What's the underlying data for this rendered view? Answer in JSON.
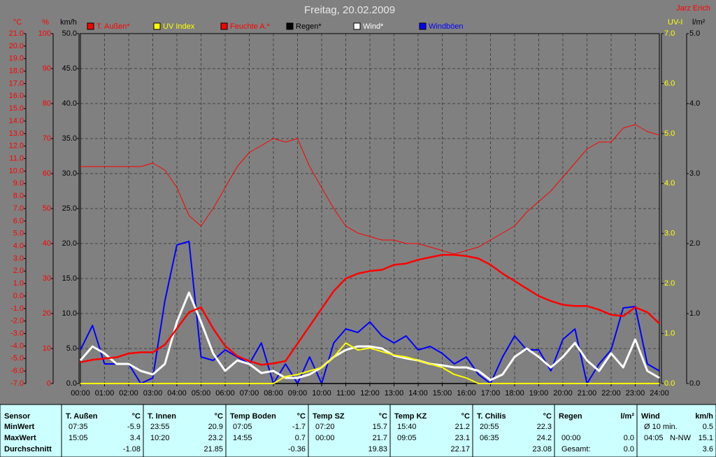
{
  "chart_data": {
    "type": "line",
    "title": "Freitag, 20.02.2009",
    "author": "Jarz Erich",
    "grid": true,
    "x": [
      0,
      0.5,
      1,
      1.5,
      2,
      2.5,
      3,
      3.5,
      4,
      4.5,
      5,
      5.5,
      6,
      6.5,
      7,
      7.5,
      8,
      8.5,
      9,
      9.5,
      10,
      10.5,
      11,
      11.5,
      12,
      12.5,
      13,
      13.5,
      14,
      14.5,
      15,
      15.5,
      16,
      16.5,
      17,
      17.5,
      18,
      18.5,
      19,
      19.5,
      20,
      20.5,
      21,
      21.5,
      22,
      22.5,
      23,
      23.5,
      24
    ],
    "xlim": [
      0,
      24
    ],
    "xticks": [
      {
        "value": 0,
        "label": "00:00"
      },
      {
        "value": 1,
        "label": "01:00"
      },
      {
        "value": 2,
        "label": "02:00"
      },
      {
        "value": 3,
        "label": "03:00"
      },
      {
        "value": 4,
        "label": "04:00"
      },
      {
        "value": 5,
        "label": "05:00"
      },
      {
        "value": 6,
        "label": "06:00"
      },
      {
        "value": 7,
        "label": "07:00"
      },
      {
        "value": 8,
        "label": "08:00"
      },
      {
        "value": 9,
        "label": "09:00"
      },
      {
        "value": 10,
        "label": "10:00"
      },
      {
        "value": 11,
        "label": "11:00"
      },
      {
        "value": 12,
        "label": "12:00"
      },
      {
        "value": 13,
        "label": "13:00"
      },
      {
        "value": 14,
        "label": "14:00"
      },
      {
        "value": 15,
        "label": "15:00"
      },
      {
        "value": 16,
        "label": "16:00"
      },
      {
        "value": 17,
        "label": "17:00"
      },
      {
        "value": 18,
        "label": "18:00"
      },
      {
        "value": 19,
        "label": "19:00"
      },
      {
        "value": 20,
        "label": "20:00"
      },
      {
        "value": 21,
        "label": "21:00"
      },
      {
        "value": 22,
        "label": "22:00"
      },
      {
        "value": 23,
        "label": "23:00"
      },
      {
        "value": 24,
        "label": "24:00"
      }
    ],
    "ylabel": "°C",
    "ylim": [
      -7,
      21
    ],
    "yticks": [
      {
        "value": -7,
        "label": "-7.0"
      },
      {
        "value": -6,
        "label": "-6.0"
      },
      {
        "value": -5,
        "label": "-5.0"
      },
      {
        "value": -4,
        "label": "-4.0"
      },
      {
        "value": -3,
        "label": "-3.0"
      },
      {
        "value": -2,
        "label": "-2.0"
      },
      {
        "value": -1,
        "label": "-1.0"
      },
      {
        "value": 0,
        "label": "0.0"
      },
      {
        "value": 1,
        "label": "1.0"
      },
      {
        "value": 2,
        "label": "2.0"
      },
      {
        "value": 3,
        "label": "3.0"
      },
      {
        "value": 4,
        "label": "4.0"
      },
      {
        "value": 5,
        "label": "5.0"
      },
      {
        "value": 6,
        "label": "6.0"
      },
      {
        "value": 7,
        "label": "7.0"
      },
      {
        "value": 8,
        "label": "8.0"
      },
      {
        "value": 9,
        "label": "9.0"
      },
      {
        "value": 10,
        "label": "10.0"
      },
      {
        "value": 11,
        "label": "11.0"
      },
      {
        "value": 12,
        "label": "12.0"
      },
      {
        "value": 13,
        "label": "13.0"
      },
      {
        "value": 14,
        "label": "14.0"
      },
      {
        "value": 15,
        "label": "15.0"
      },
      {
        "value": 16,
        "label": "16.0"
      },
      {
        "value": 17,
        "label": "17.0"
      },
      {
        "value": 18,
        "label": "18.0"
      },
      {
        "value": 19,
        "label": "19.0"
      },
      {
        "value": 20,
        "label": "20.0"
      },
      {
        "value": 21,
        "label": "21.0"
      }
    ],
    "y2label": "%",
    "y2lim": [
      0,
      100
    ],
    "y2ticks": [
      0,
      10,
      20,
      30,
      40,
      50,
      60,
      70,
      80,
      90,
      100
    ],
    "y3label": "km/h",
    "y3lim": [
      0,
      50
    ],
    "y3ticks": [
      {
        "value": 0,
        "label": "0.0"
      },
      {
        "value": 5,
        "label": "5.0"
      },
      {
        "value": 10,
        "label": "10.0"
      },
      {
        "value": 15,
        "label": "15.0"
      },
      {
        "value": 20,
        "label": "20.0"
      },
      {
        "value": 25,
        "label": "25.0"
      },
      {
        "value": 30,
        "label": "30.0"
      },
      {
        "value": 35,
        "label": "35.0"
      },
      {
        "value": 40,
        "label": "40.0"
      },
      {
        "value": 45,
        "label": "45.0"
      },
      {
        "value": 50,
        "label": "50.0"
      }
    ],
    "y4label": "UV-I",
    "y4lim": [
      0,
      7
    ],
    "y4ticks": [
      {
        "value": 0,
        "label": "0.0"
      },
      {
        "value": 1,
        "label": "1.0"
      },
      {
        "value": 2,
        "label": "2.0"
      },
      {
        "value": 3,
        "label": "3.0"
      },
      {
        "value": 4,
        "label": "4.0"
      },
      {
        "value": 5,
        "label": "5.0"
      },
      {
        "value": 6,
        "label": "6.0"
      },
      {
        "value": 7,
        "label": "7.0"
      }
    ],
    "y5label": "l/m²",
    "y5lim": [
      0,
      5
    ],
    "y5ticks": [
      {
        "value": 0,
        "label": "0.0"
      },
      {
        "value": 1,
        "label": "1.0"
      },
      {
        "value": 2,
        "label": "2.0"
      },
      {
        "value": 3,
        "label": "3.0"
      },
      {
        "value": 4,
        "label": "4.0"
      },
      {
        "value": 5,
        "label": "5.0"
      }
    ],
    "series": [
      {
        "name": "T. Außen*",
        "color": "#ff0000",
        "axis": "y",
        "values": [
          -5.3,
          -5.1,
          -5.0,
          -4.9,
          -4.6,
          -4.5,
          -4.5,
          -3.9,
          -2.6,
          -1.3,
          -0.9,
          -2.6,
          -4.0,
          -4.8,
          -5.2,
          -5.5,
          -5.4,
          -5.2,
          -3.8,
          -2.4,
          -1.0,
          0.4,
          1.4,
          1.8,
          2.0,
          2.1,
          2.5,
          2.6,
          2.9,
          3.1,
          3.3,
          3.3,
          3.2,
          3.0,
          2.5,
          1.8,
          1.2,
          0.6,
          0.0,
          -0.4,
          -0.7,
          -0.8,
          -0.8,
          -1.1,
          -1.5,
          -1.6,
          -0.9,
          -1.3,
          -2.2
        ]
      },
      {
        "name": "UV Index",
        "color": "#ffff00",
        "axis": "y4",
        "values": [
          0,
          0,
          0,
          0,
          0,
          0,
          0,
          0,
          0,
          0,
          0,
          0,
          0,
          0,
          0,
          0,
          0,
          0.14,
          0.18,
          0.25,
          0.32,
          0.53,
          0.81,
          0.67,
          0.71,
          0.64,
          0.57,
          0.53,
          0.46,
          0.39,
          0.32,
          0.18,
          0.11,
          0,
          0,
          0,
          0,
          0,
          0,
          0,
          0,
          0,
          0,
          0,
          0,
          0,
          0,
          0,
          0
        ]
      },
      {
        "name": "Feuchte A.*",
        "color": "#ff0000",
        "axis": "y2",
        "values": [
          62,
          62,
          62,
          62,
          62,
          62,
          63,
          61,
          56,
          48,
          45,
          50,
          56,
          62,
          66,
          68,
          70,
          69,
          70,
          62,
          56,
          50,
          45,
          43,
          42,
          41,
          41,
          40,
          40,
          39,
          38,
          37,
          38,
          39,
          41,
          43,
          45,
          49,
          52,
          55,
          59,
          63,
          67,
          69,
          69,
          73,
          74,
          72,
          71
        ]
      },
      {
        "name": "Regen*",
        "color": "#000000",
        "axis": "y5",
        "values": [
          0,
          0,
          0,
          0,
          0,
          0,
          0,
          0,
          0,
          0,
          0,
          0,
          0,
          0,
          0,
          0,
          0,
          0,
          0,
          0,
          0,
          0,
          0,
          0,
          0,
          0,
          0,
          0,
          0,
          0,
          0,
          0,
          0,
          0,
          0,
          0,
          0,
          0,
          0,
          0,
          0,
          0,
          0,
          0,
          0,
          0,
          0,
          0,
          0
        ]
      },
      {
        "name": "Wind*",
        "color": "#ffffff",
        "axis": "y3",
        "values": [
          3.3,
          5.3,
          4.3,
          2.8,
          2.8,
          1.8,
          1.3,
          2.8,
          8.8,
          13.0,
          8.8,
          4.3,
          1.8,
          3.3,
          2.8,
          1.5,
          1.8,
          0.8,
          0.8,
          1.3,
          2.3,
          3.8,
          4.8,
          5.3,
          5.3,
          5.0,
          4.0,
          3.6,
          3.3,
          2.8,
          2.6,
          2.3,
          2.3,
          1.8,
          0.5,
          1.3,
          3.8,
          5.0,
          3.8,
          2.3,
          3.8,
          5.8,
          3.3,
          1.8,
          4.3,
          2.3,
          6.3,
          1.8,
          0.8
        ]
      },
      {
        "name": "Windböen",
        "color": "#0000ff",
        "axis": "y3",
        "values": [
          4.8,
          8.3,
          2.8,
          2.8,
          2.8,
          0,
          0.8,
          11.8,
          19.8,
          20.3,
          3.8,
          3.3,
          4.8,
          3.8,
          2.8,
          5.8,
          0,
          2.8,
          0,
          3.8,
          0,
          5.8,
          7.8,
          7.3,
          8.8,
          6.8,
          5.8,
          6.8,
          4.8,
          5.3,
          4.3,
          2.8,
          3.8,
          1.3,
          0,
          3.8,
          6.8,
          4.8,
          4.8,
          1.8,
          6.3,
          7.8,
          0,
          2.8,
          4.8,
          10.8,
          11.0,
          2.8,
          1.8
        ]
      }
    ]
  },
  "table": {
    "label_column": {
      "header": "Sensor",
      "rows": [
        "MinWert",
        "MaxWert",
        "Durchschnitt"
      ]
    },
    "columns": [
      {
        "header": "T. Außen",
        "unit": "°C",
        "rows": [
          {
            "time": "07:35",
            "value": "-5.9"
          },
          {
            "time": "15:05",
            "value": "3.4"
          },
          {
            "value": "-1.08"
          }
        ]
      },
      {
        "header": "T. Innen",
        "unit": "°C",
        "rows": [
          {
            "time": "23:55",
            "value": "20.9"
          },
          {
            "time": "10:20",
            "value": "23.2"
          },
          {
            "value": "21.85"
          }
        ]
      },
      {
        "header": "Temp Boden",
        "unit": "°C",
        "rows": [
          {
            "time": "07:05",
            "value": "-1.7"
          },
          {
            "time": "14:55",
            "value": "0.7"
          },
          {
            "value": "-0.36"
          }
        ]
      },
      {
        "header": "Temp SZ",
        "unit": "°C",
        "rows": [
          {
            "time": "07:20",
            "value": "15.7"
          },
          {
            "time": "00:00",
            "value": "21.7"
          },
          {
            "value": "19.83"
          }
        ]
      },
      {
        "header": "Temp KZ",
        "unit": "°C",
        "rows": [
          {
            "time": "15:40",
            "value": "21.2"
          },
          {
            "time": "09:05",
            "value": "23.1"
          },
          {
            "value": "22.17"
          }
        ]
      },
      {
        "header": "T. Chilis",
        "unit": "°C",
        "rows": [
          {
            "time": "20:55",
            "value": "22.3"
          },
          {
            "time": "06:35",
            "value": "24.2"
          },
          {
            "value": "23.08"
          }
        ]
      },
      {
        "header": "Regen",
        "unit": "l/m²",
        "rows": [
          {},
          {
            "time": "00:00",
            "value": "0.0"
          },
          {
            "time": "Gesamt:",
            "value": "0.0"
          }
        ]
      },
      {
        "header": "Wind",
        "unit": "km/h",
        "rows": [
          {
            "time": "Ø 10 min.",
            "value": "0.5"
          },
          {
            "time": "04:05",
            "dir": "N-NW",
            "value": "15.1"
          },
          {
            "value": "3.6"
          }
        ]
      }
    ]
  }
}
